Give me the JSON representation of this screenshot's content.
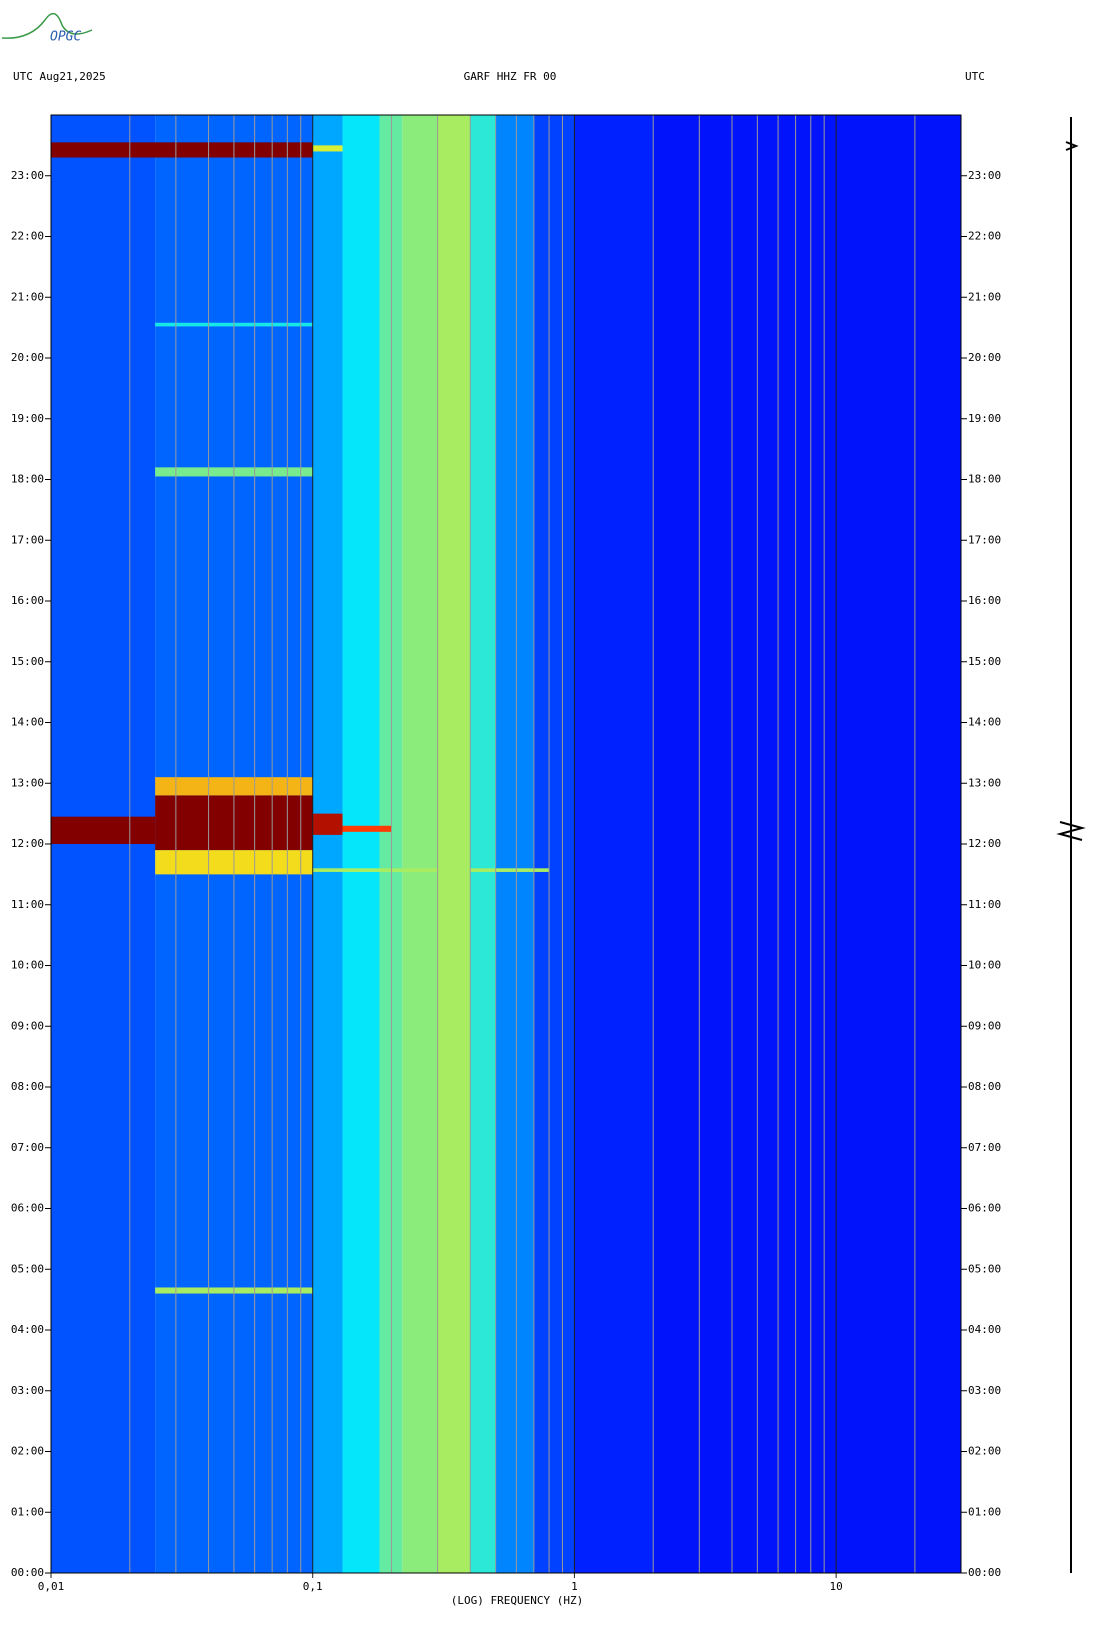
{
  "logo": "OPGC",
  "chart_data": {
    "type": "heatmap",
    "title_left": "UTC  Aug21,2025",
    "title": "GARF HHZ FR 00",
    "title_right": "UTC",
    "xlabel": "(LOG) FREQUENCY (HZ)",
    "xscale": "log",
    "xlim": [
      0.01,
      30
    ],
    "xticks": [
      {
        "value": 0.01,
        "label": "0,01"
      },
      {
        "value": 0.1,
        "label": "0,1"
      },
      1,
      10
    ],
    "ylim": [
      0,
      24
    ],
    "yticks": [
      {
        "value": 0,
        "label": "00:00"
      },
      {
        "value": 1,
        "label": "01:00"
      },
      {
        "value": 2,
        "label": "02:00"
      },
      {
        "value": 3,
        "label": "03:00"
      },
      {
        "value": 4,
        "label": "04:00"
      },
      {
        "value": 5,
        "label": "05:00"
      },
      {
        "value": 6,
        "label": "06:00"
      },
      {
        "value": 7,
        "label": "07:00"
      },
      {
        "value": 8,
        "label": "08:00"
      },
      {
        "value": 9,
        "label": "09:00"
      },
      {
        "value": 10,
        "label": "10:00"
      },
      {
        "value": 11,
        "label": "11:00"
      },
      {
        "value": 12,
        "label": "12:00"
      },
      {
        "value": 13,
        "label": "13:00"
      },
      {
        "value": 14,
        "label": "14:00"
      },
      {
        "value": 15,
        "label": "15:00"
      },
      {
        "value": 16,
        "label": "16:00"
      },
      {
        "value": 17,
        "label": "17:00"
      },
      {
        "value": 18,
        "label": "18:00"
      },
      {
        "value": 19,
        "label": "19:00"
      },
      {
        "value": 20,
        "label": "20:00"
      },
      {
        "value": 21,
        "label": "21:00"
      },
      {
        "value": 22,
        "label": "22:00"
      },
      {
        "value": 23,
        "label": "23:00"
      }
    ],
    "grid": true,
    "x_bins": [
      0.01,
      0.025,
      0.1,
      0.13,
      0.18,
      0.22,
      0.3,
      0.4,
      0.5,
      0.7,
      1,
      2,
      30
    ],
    "background": [
      0.2,
      0.22,
      0.3,
      0.38,
      0.48,
      0.52,
      0.55,
      0.42,
      0.26,
      0.18,
      0.14,
      0.12
    ],
    "events": [
      {
        "t0": 23.3,
        "t1": 23.55,
        "f0": 0.01,
        "f1": 0.1,
        "level": 1
      },
      {
        "t0": 23.4,
        "t1": 23.5,
        "f0": 0.1,
        "f1": 0.13,
        "level": 0.6
      },
      {
        "t0": 11.5,
        "t1": 11.9,
        "f0": 0.025,
        "f1": 0.1,
        "level": 0.65
      },
      {
        "t0": 11.9,
        "t1": 12.8,
        "f0": 0.025,
        "f1": 0.1,
        "level": 1
      },
      {
        "t0": 12.8,
        "t1": 13.1,
        "f0": 0.025,
        "f1": 0.1,
        "level": 0.7
      },
      {
        "t0": 12.0,
        "t1": 12.45,
        "f0": 0.01,
        "f1": 0.025,
        "level": 1
      },
      {
        "t0": 12.15,
        "t1": 12.5,
        "f0": 0.1,
        "f1": 0.13,
        "level": 0.95
      },
      {
        "t0": 12.2,
        "t1": 12.3,
        "f0": 0.13,
        "f1": 0.2,
        "level": 0.85
      },
      {
        "t0": 11.54,
        "t1": 11.6,
        "f0": 0.1,
        "f1": 0.8,
        "level": 0.55
      },
      {
        "t0": 18.05,
        "t1": 18.2,
        "f0": 0.025,
        "f1": 0.1,
        "level": 0.5
      },
      {
        "t0": 4.6,
        "t1": 4.7,
        "f0": 0.025,
        "f1": 0.1,
        "level": 0.55
      },
      {
        "t0": 20.52,
        "t1": 20.58,
        "f0": 0.025,
        "f1": 0.1,
        "level": 0.4
      }
    ]
  }
}
